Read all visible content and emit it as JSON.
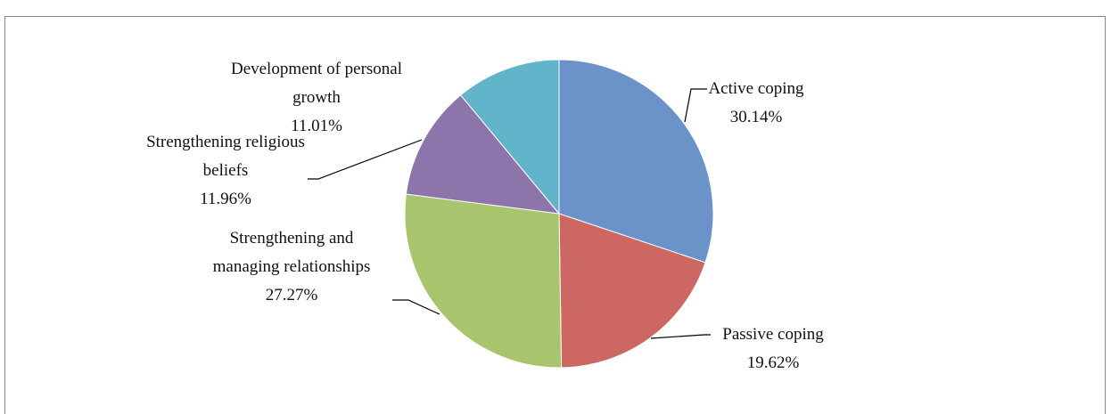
{
  "chart_data": {
    "type": "pie",
    "categories": [
      "Active coping",
      "Passive coping",
      "Strengthening and managing relationships",
      "Strengthening religious beliefs",
      "Development of personal growth"
    ],
    "values": [
      30.14,
      19.62,
      27.27,
      11.96,
      11.01
    ],
    "value_labels": [
      "30.14%",
      "19.62%",
      "27.27%",
      "11.96%",
      "11.01%"
    ],
    "colors": [
      "#6b93c9",
      "#cc6764",
      "#a8c46d",
      "#8d75ab",
      "#62b4cb"
    ]
  }
}
